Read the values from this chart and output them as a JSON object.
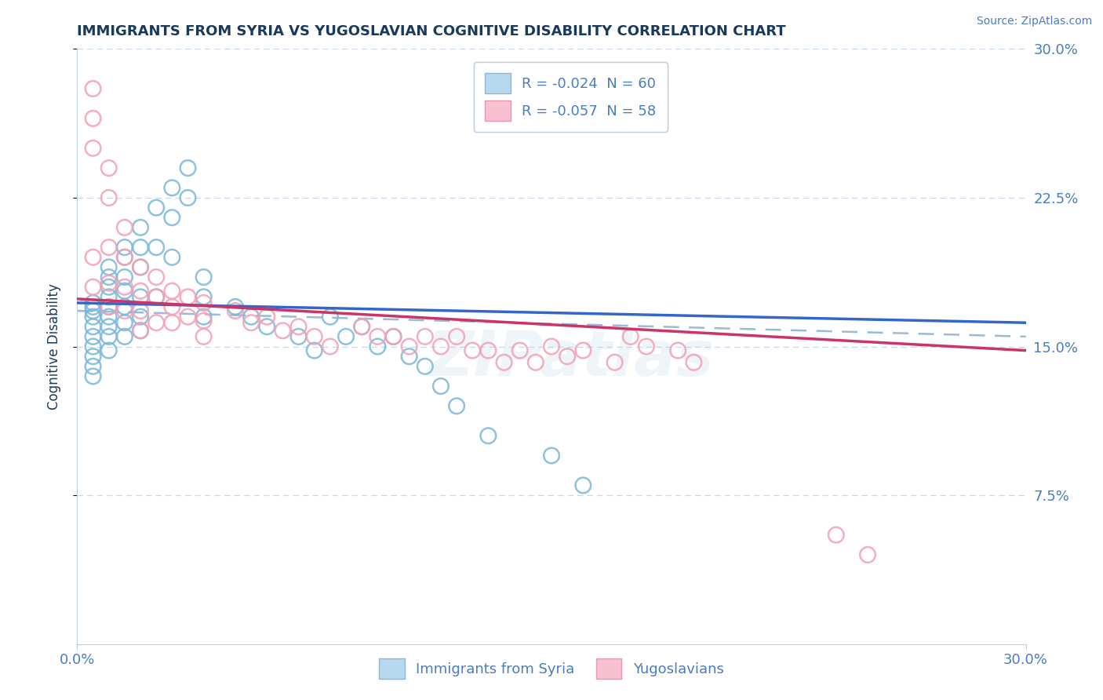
{
  "title": "IMMIGRANTS FROM SYRIA VS YUGOSLAVIAN COGNITIVE DISABILITY CORRELATION CHART",
  "source": "Source: ZipAtlas.com",
  "ylabel": "Cognitive Disability",
  "right_yticks": [
    "30.0%",
    "22.5%",
    "15.0%",
    "7.5%"
  ],
  "right_ytick_vals": [
    0.3,
    0.225,
    0.15,
    0.075
  ],
  "xmin": 0.0,
  "xmax": 0.3,
  "ymin": 0.0,
  "ymax": 0.3,
  "legend_r1": "R = -0.024  N = 60",
  "legend_r2": "R = -0.057  N = 58",
  "legend_label1": "Immigrants from Syria",
  "legend_label2": "Yugoslavians",
  "blue_color": "#7ab8d9",
  "pink_color": "#f4a0b5",
  "blue_line_color": "#3366cc",
  "pink_line_color": "#cc3366",
  "dash_line_color": "#99bbd9",
  "title_color": "#1a3a5c",
  "axis_color": "#4a7dbf",
  "watermark": "ZIPatlas",
  "blue_scatter_x": [
    0.005,
    0.005,
    0.005,
    0.005,
    0.005,
    0.005,
    0.005,
    0.005,
    0.005,
    0.005,
    0.01,
    0.01,
    0.01,
    0.01,
    0.01,
    0.01,
    0.01,
    0.01,
    0.01,
    0.015,
    0.015,
    0.015,
    0.015,
    0.015,
    0.015,
    0.015,
    0.02,
    0.02,
    0.02,
    0.02,
    0.02,
    0.02,
    0.025,
    0.025,
    0.025,
    0.03,
    0.03,
    0.03,
    0.035,
    0.035,
    0.04,
    0.04,
    0.04,
    0.05,
    0.055,
    0.06,
    0.07,
    0.075,
    0.08,
    0.085,
    0.09,
    0.095,
    0.1,
    0.105,
    0.11,
    0.115,
    0.12,
    0.13,
    0.15,
    0.16
  ],
  "blue_scatter_y": [
    0.17,
    0.172,
    0.168,
    0.165,
    0.16,
    0.155,
    0.15,
    0.145,
    0.14,
    0.135,
    0.19,
    0.185,
    0.18,
    0.175,
    0.17,
    0.165,
    0.16,
    0.155,
    0.148,
    0.2,
    0.195,
    0.185,
    0.178,
    0.17,
    0.162,
    0.155,
    0.21,
    0.2,
    0.19,
    0.175,
    0.165,
    0.158,
    0.22,
    0.2,
    0.175,
    0.23,
    0.215,
    0.195,
    0.24,
    0.225,
    0.185,
    0.175,
    0.165,
    0.17,
    0.165,
    0.16,
    0.155,
    0.148,
    0.165,
    0.155,
    0.16,
    0.15,
    0.155,
    0.145,
    0.14,
    0.13,
    0.12,
    0.105,
    0.095,
    0.08
  ],
  "pink_scatter_x": [
    0.005,
    0.005,
    0.005,
    0.005,
    0.005,
    0.01,
    0.01,
    0.01,
    0.01,
    0.01,
    0.015,
    0.015,
    0.015,
    0.015,
    0.02,
    0.02,
    0.02,
    0.02,
    0.025,
    0.025,
    0.025,
    0.03,
    0.03,
    0.03,
    0.035,
    0.035,
    0.04,
    0.04,
    0.04,
    0.05,
    0.055,
    0.06,
    0.065,
    0.07,
    0.075,
    0.08,
    0.09,
    0.095,
    0.1,
    0.105,
    0.11,
    0.115,
    0.12,
    0.125,
    0.13,
    0.135,
    0.14,
    0.145,
    0.15,
    0.155,
    0.16,
    0.17,
    0.175,
    0.18,
    0.19,
    0.195,
    0.24,
    0.25
  ],
  "pink_scatter_y": [
    0.28,
    0.265,
    0.25,
    0.195,
    0.18,
    0.24,
    0.225,
    0.2,
    0.182,
    0.17,
    0.21,
    0.195,
    0.18,
    0.168,
    0.19,
    0.178,
    0.168,
    0.158,
    0.185,
    0.175,
    0.162,
    0.178,
    0.17,
    0.162,
    0.175,
    0.165,
    0.172,
    0.163,
    0.155,
    0.168,
    0.162,
    0.165,
    0.158,
    0.16,
    0.155,
    0.15,
    0.16,
    0.155,
    0.155,
    0.15,
    0.155,
    0.15,
    0.155,
    0.148,
    0.148,
    0.142,
    0.148,
    0.142,
    0.15,
    0.145,
    0.148,
    0.142,
    0.155,
    0.15,
    0.148,
    0.142,
    0.055,
    0.045
  ],
  "blue_line_x": [
    0.0,
    0.3
  ],
  "blue_line_y": [
    0.172,
    0.162
  ],
  "pink_line_x": [
    0.0,
    0.3
  ],
  "pink_line_y": [
    0.174,
    0.148
  ],
  "dash_line_x": [
    0.0,
    0.3
  ],
  "dash_line_y": [
    0.168,
    0.155
  ]
}
